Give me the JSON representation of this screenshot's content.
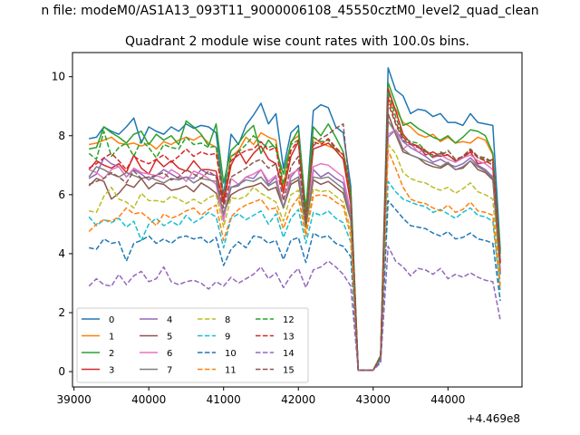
{
  "figure": {
    "suptitle": "n file: modeM0/AS1A13_093T11_9000006108_45550cztM0_level2_quad_clean",
    "title": "Quadrant 2 module wise count rates with 100.0s bins."
  },
  "chart_data": {
    "type": "line",
    "title": "Quadrant 2 module wise count rates with 100.0s bins.",
    "xlabel": "",
    "ylabel": "",
    "x_offset_label": "+4.469e8",
    "xlim": [
      38980,
      44990
    ],
    "ylim": [
      -0.52,
      10.82
    ],
    "xticks": [
      39000,
      40000,
      41000,
      42000,
      43000,
      44000
    ],
    "xtick_labels": [
      "39000",
      "40000",
      "41000",
      "42000",
      "43000",
      "44000"
    ],
    "yticks": [
      0,
      2,
      4,
      6,
      8,
      10
    ],
    "ytick_labels": [
      "0",
      "2",
      "4",
      "6",
      "8",
      "10"
    ],
    "grid": false,
    "legend_position": "lower-left",
    "legend_columns": 4,
    "x": [
      39200,
      39300,
      39400,
      39500,
      39600,
      39700,
      39800,
      39900,
      40000,
      40100,
      40200,
      40300,
      40400,
      40500,
      40600,
      40700,
      40800,
      40900,
      41000,
      41100,
      41200,
      41300,
      41400,
      41500,
      41600,
      41700,
      41800,
      41900,
      42000,
      42100,
      42200,
      42300,
      42400,
      42500,
      42600,
      42700,
      42800,
      42900,
      43000,
      43100,
      43200,
      43300,
      43400,
      43500,
      43600,
      43700,
      43800,
      43900,
      44000,
      44100,
      44200,
      44300,
      44400,
      44500,
      44600,
      44700
    ],
    "series": [
      {
        "name": "0",
        "color": "#1f77b4",
        "dash": "solid",
        "values": [
          7.9,
          7.95,
          8.3,
          8.15,
          8.05,
          8.3,
          8.6,
          7.75,
          8.3,
          8.15,
          8.05,
          8.3,
          8.15,
          8.4,
          8.25,
          8.35,
          8.3,
          8.1,
          5.95,
          8.05,
          7.7,
          8.35,
          8.7,
          9.1,
          8.4,
          8.75,
          6.9,
          8.1,
          8.35,
          5.4,
          8.85,
          9.05,
          8.95,
          8.3,
          8.1,
          6.3,
          0.05,
          0.05,
          0.05,
          0.55,
          10.3,
          9.55,
          9.35,
          8.75,
          8.9,
          8.85,
          8.65,
          8.75,
          8.45,
          8.45,
          8.35,
          8.75,
          8.45,
          8.4,
          8.35,
          4.1
        ]
      },
      {
        "name": "1",
        "color": "#ff7f0e",
        "dash": "solid",
        "values": [
          7.7,
          7.75,
          7.85,
          7.95,
          7.75,
          7.7,
          7.75,
          7.65,
          7.75,
          7.55,
          7.8,
          7.7,
          7.85,
          7.95,
          7.85,
          8.0,
          7.75,
          7.6,
          5.8,
          7.3,
          7.5,
          7.95,
          7.7,
          8.1,
          7.95,
          7.85,
          6.2,
          7.8,
          8.0,
          5.4,
          7.95,
          7.75,
          7.65,
          7.55,
          7.35,
          5.9,
          0.05,
          0.05,
          0.05,
          0.5,
          9.2,
          8.9,
          8.45,
          8.3,
          8.05,
          7.95,
          8.05,
          7.8,
          7.95,
          7.75,
          7.8,
          7.75,
          7.95,
          7.85,
          7.35,
          3.7
        ]
      },
      {
        "name": "2",
        "color": "#2ca02c",
        "dash": "solid",
        "values": [
          7.55,
          7.6,
          8.3,
          8.1,
          7.95,
          7.75,
          8.05,
          8.15,
          7.7,
          8.05,
          7.85,
          8.0,
          7.7,
          8.5,
          8.3,
          8.05,
          7.65,
          8.4,
          6.4,
          7.5,
          7.75,
          8.1,
          8.35,
          7.4,
          7.85,
          7.55,
          6.7,
          7.75,
          8.2,
          5.5,
          8.3,
          8.0,
          8.4,
          7.95,
          7.45,
          6.15,
          0.05,
          0.05,
          0.05,
          0.55,
          9.8,
          9.1,
          8.35,
          8.45,
          8.25,
          8.1,
          7.95,
          7.85,
          8.0,
          7.75,
          7.95,
          8.2,
          8.15,
          8.0,
          7.4,
          4.0
        ]
      },
      {
        "name": "3",
        "color": "#d62728",
        "dash": "solid",
        "values": [
          6.85,
          7.15,
          7.0,
          6.9,
          7.05,
          6.75,
          7.35,
          6.9,
          6.7,
          7.2,
          6.95,
          7.15,
          6.9,
          6.8,
          7.15,
          6.85,
          6.85,
          6.8,
          5.7,
          7.0,
          7.5,
          7.05,
          7.4,
          7.65,
          7.2,
          7.05,
          6.1,
          7.3,
          7.8,
          5.1,
          7.55,
          7.65,
          7.75,
          7.5,
          7.2,
          5.7,
          0.05,
          0.05,
          0.05,
          0.5,
          9.6,
          8.85,
          8.05,
          7.75,
          7.65,
          7.35,
          7.45,
          7.3,
          7.35,
          7.15,
          7.25,
          7.45,
          7.05,
          7.1,
          7.2,
          3.7
        ]
      },
      {
        "name": "4",
        "color": "#9467bd",
        "dash": "solid",
        "values": [
          6.55,
          6.7,
          7.25,
          7.05,
          6.95,
          6.6,
          6.85,
          6.7,
          6.5,
          6.65,
          6.85,
          6.7,
          6.55,
          6.6,
          6.55,
          6.85,
          6.7,
          6.65,
          5.2,
          6.25,
          6.3,
          6.6,
          6.55,
          6.85,
          6.35,
          6.6,
          5.55,
          6.6,
          6.9,
          4.95,
          6.85,
          6.6,
          6.75,
          6.55,
          6.4,
          5.35,
          0.05,
          0.05,
          0.05,
          0.45,
          7.95,
          8.2,
          7.8,
          7.6,
          7.45,
          7.3,
          7.1,
          7.2,
          7.05,
          6.95,
          7.05,
          7.25,
          7.0,
          6.85,
          6.6,
          3.3
        ]
      },
      {
        "name": "5",
        "color": "#8c564b",
        "dash": "solid",
        "values": [
          6.3,
          6.55,
          6.45,
          5.85,
          6.05,
          6.35,
          6.25,
          6.55,
          6.2,
          6.4,
          6.35,
          6.15,
          6.2,
          6.3,
          6.1,
          6.4,
          6.25,
          6.05,
          5.35,
          6.0,
          6.15,
          6.25,
          6.3,
          6.4,
          6.15,
          6.25,
          5.55,
          6.35,
          6.5,
          4.9,
          6.5,
          6.35,
          6.45,
          6.25,
          6.05,
          5.15,
          0.05,
          0.05,
          0.05,
          0.45,
          8.75,
          8.05,
          7.45,
          7.35,
          7.25,
          7.05,
          6.95,
          6.9,
          7.05,
          6.85,
          6.9,
          7.15,
          6.85,
          6.75,
          6.5,
          3.4
        ]
      },
      {
        "name": "6",
        "color": "#e377c2",
        "dash": "solid",
        "values": [
          6.85,
          6.75,
          6.55,
          6.85,
          6.95,
          6.6,
          6.9,
          6.75,
          6.7,
          6.65,
          6.55,
          6.85,
          6.7,
          6.45,
          6.8,
          6.7,
          6.55,
          6.35,
          5.1,
          6.55,
          6.35,
          6.6,
          6.7,
          6.85,
          6.45,
          6.65,
          5.55,
          6.7,
          6.85,
          5.0,
          6.95,
          7.05,
          7.0,
          6.8,
          6.6,
          5.4,
          0.05,
          0.05,
          0.05,
          0.5,
          8.05,
          8.2,
          7.55,
          7.75,
          7.45,
          7.5,
          7.25,
          7.35,
          7.2,
          7.1,
          7.25,
          7.35,
          7.15,
          7.05,
          6.85,
          3.45
        ]
      },
      {
        "name": "7",
        "color": "#7f7f7f",
        "dash": "solid",
        "values": [
          6.6,
          6.95,
          6.85,
          6.7,
          6.6,
          6.75,
          6.65,
          6.55,
          6.6,
          6.5,
          6.4,
          6.55,
          6.5,
          6.6,
          6.4,
          6.55,
          6.5,
          6.45,
          5.35,
          6.25,
          6.35,
          6.5,
          6.45,
          6.6,
          6.3,
          6.45,
          5.55,
          6.45,
          6.6,
          5.0,
          6.6,
          6.55,
          6.6,
          6.4,
          6.2,
          5.2,
          0.05,
          0.05,
          0.05,
          0.45,
          8.5,
          8.1,
          7.55,
          7.35,
          7.25,
          7.15,
          7.05,
          6.95,
          7.1,
          6.85,
          6.95,
          7.15,
          6.95,
          6.8,
          6.55,
          3.3
        ]
      },
      {
        "name": "8",
        "color": "#bcbd22",
        "dash": "dashed",
        "values": [
          5.45,
          5.4,
          5.95,
          6.25,
          5.85,
          5.75,
          5.55,
          6.05,
          5.8,
          5.8,
          5.75,
          5.95,
          5.85,
          5.7,
          5.85,
          5.7,
          5.9,
          6.0,
          4.9,
          5.9,
          5.85,
          5.95,
          6.25,
          6.05,
          5.9,
          5.75,
          5.1,
          6.0,
          6.15,
          4.7,
          6.2,
          6.1,
          6.15,
          5.95,
          5.75,
          4.8,
          0.05,
          0.05,
          0.05,
          0.45,
          7.7,
          7.4,
          6.75,
          6.55,
          6.45,
          6.4,
          6.25,
          6.15,
          6.25,
          6.05,
          6.2,
          6.4,
          6.1,
          6.0,
          5.85,
          2.95
        ]
      },
      {
        "name": "9",
        "color": "#17becf",
        "dash": "dashed",
        "values": [
          5.25,
          4.95,
          5.15,
          5.05,
          5.2,
          4.9,
          5.1,
          4.45,
          5.0,
          5.2,
          4.95,
          5.1,
          4.95,
          5.3,
          5.05,
          5.2,
          5.4,
          5.25,
          4.2,
          5.2,
          5.35,
          5.15,
          5.3,
          5.45,
          5.0,
          5.35,
          4.55,
          5.2,
          5.5,
          4.35,
          5.4,
          5.3,
          5.45,
          5.2,
          5.05,
          4.4,
          0.05,
          0.05,
          0.05,
          0.4,
          6.45,
          6.1,
          5.85,
          5.75,
          5.65,
          5.6,
          5.4,
          5.5,
          5.35,
          5.2,
          5.4,
          5.55,
          5.3,
          5.25,
          5.1,
          2.7
        ]
      },
      {
        "name": "10",
        "color": "#1f77b4",
        "dash": "dashed",
        "values": [
          4.2,
          4.15,
          4.5,
          4.35,
          4.4,
          3.75,
          4.35,
          4.45,
          4.6,
          4.35,
          4.5,
          4.35,
          4.55,
          4.6,
          4.5,
          4.55,
          4.35,
          4.55,
          3.6,
          4.15,
          4.4,
          4.2,
          4.6,
          4.55,
          4.35,
          4.45,
          3.8,
          4.45,
          4.55,
          3.7,
          4.7,
          4.55,
          4.6,
          4.35,
          4.25,
          3.9,
          0.05,
          0.05,
          0.05,
          0.35,
          5.8,
          5.5,
          5.2,
          4.95,
          4.9,
          4.85,
          4.7,
          4.6,
          4.75,
          4.5,
          4.55,
          4.7,
          4.5,
          4.45,
          4.35,
          2.4
        ]
      },
      {
        "name": "11",
        "color": "#ff7f0e",
        "dash": "dashed",
        "values": [
          4.75,
          5.0,
          5.15,
          5.1,
          5.25,
          5.55,
          5.35,
          5.4,
          5.2,
          4.95,
          5.35,
          5.2,
          5.3,
          5.45,
          5.55,
          5.3,
          5.5,
          5.65,
          4.45,
          5.25,
          5.5,
          5.65,
          5.75,
          5.85,
          5.5,
          5.55,
          4.85,
          5.55,
          5.9,
          4.6,
          5.95,
          6.0,
          5.95,
          5.75,
          5.6,
          4.6,
          0.05,
          0.05,
          0.05,
          0.5,
          7.5,
          6.9,
          6.25,
          5.85,
          5.75,
          5.7,
          5.55,
          5.45,
          5.65,
          5.4,
          5.5,
          5.75,
          5.45,
          5.4,
          5.3,
          2.8
        ]
      },
      {
        "name": "12",
        "color": "#2ca02c",
        "dash": "dashed",
        "values": [
          7.4,
          7.2,
          8.15,
          7.3,
          7.6,
          7.75,
          7.3,
          7.85,
          7.6,
          7.25,
          7.7,
          7.6,
          7.55,
          7.95,
          7.7,
          7.75,
          7.6,
          7.65,
          5.9,
          7.3,
          7.45,
          7.7,
          8.0,
          7.75,
          7.6,
          7.7,
          6.35,
          7.7,
          7.85,
          5.3,
          7.95,
          7.8,
          7.85,
          7.55,
          7.35,
          5.85,
          0.05,
          0.05,
          0.05,
          0.55,
          9.5,
          8.65,
          7.95,
          7.8,
          7.75,
          7.5,
          7.25,
          7.45,
          7.35,
          7.15,
          7.3,
          7.55,
          7.25,
          7.2,
          7.1,
          3.75
        ]
      },
      {
        "name": "13",
        "color": "#d62728",
        "dash": "dashed",
        "values": [
          6.9,
          7.05,
          7.25,
          7.4,
          7.15,
          6.85,
          7.3,
          7.15,
          7.05,
          7.2,
          7.35,
          7.1,
          7.3,
          7.55,
          7.3,
          7.45,
          7.35,
          7.4,
          5.8,
          7.15,
          7.35,
          7.5,
          7.55,
          7.8,
          7.5,
          7.6,
          6.05,
          7.5,
          7.85,
          5.1,
          7.8,
          7.7,
          7.9,
          7.6,
          7.35,
          5.85,
          0.05,
          0.05,
          0.05,
          0.5,
          9.3,
          8.45,
          7.95,
          7.7,
          7.65,
          7.5,
          7.3,
          7.4,
          7.35,
          7.15,
          7.3,
          7.5,
          7.25,
          7.15,
          7.0,
          3.65
        ]
      },
      {
        "name": "14",
        "color": "#9467bd",
        "dash": "dashed",
        "values": [
          2.9,
          3.15,
          2.95,
          2.9,
          3.3,
          2.95,
          3.25,
          3.4,
          3.05,
          3.15,
          3.55,
          3.05,
          2.95,
          3.05,
          3.1,
          3.0,
          2.8,
          3.05,
          2.9,
          3.2,
          3.0,
          3.15,
          3.3,
          3.55,
          3.15,
          3.35,
          2.85,
          3.25,
          3.5,
          2.85,
          3.45,
          3.55,
          3.75,
          3.55,
          3.3,
          2.9,
          0.05,
          0.05,
          0.05,
          0.3,
          4.25,
          3.75,
          3.55,
          3.25,
          3.5,
          3.45,
          3.3,
          3.5,
          3.15,
          3.3,
          3.2,
          3.35,
          3.2,
          3.1,
          3.05,
          1.75
        ]
      },
      {
        "name": "15",
        "color": "#8c564b",
        "dash": "dashed",
        "values": [
          6.35,
          6.45,
          6.55,
          6.75,
          6.6,
          6.4,
          6.8,
          6.55,
          6.6,
          6.65,
          6.75,
          6.5,
          6.6,
          6.85,
          6.7,
          6.55,
          6.8,
          6.6,
          5.55,
          6.6,
          6.75,
          6.9,
          7.1,
          7.2,
          6.9,
          7.05,
          5.8,
          6.95,
          7.3,
          5.0,
          7.65,
          7.9,
          8.05,
          8.25,
          8.4,
          5.8,
          0.05,
          0.05,
          0.05,
          0.5,
          9.1,
          8.4,
          7.85,
          7.7,
          7.6,
          7.45,
          7.35,
          7.3,
          7.5,
          7.2,
          7.3,
          7.55,
          7.3,
          7.25,
          7.1,
          3.7
        ]
      }
    ]
  }
}
